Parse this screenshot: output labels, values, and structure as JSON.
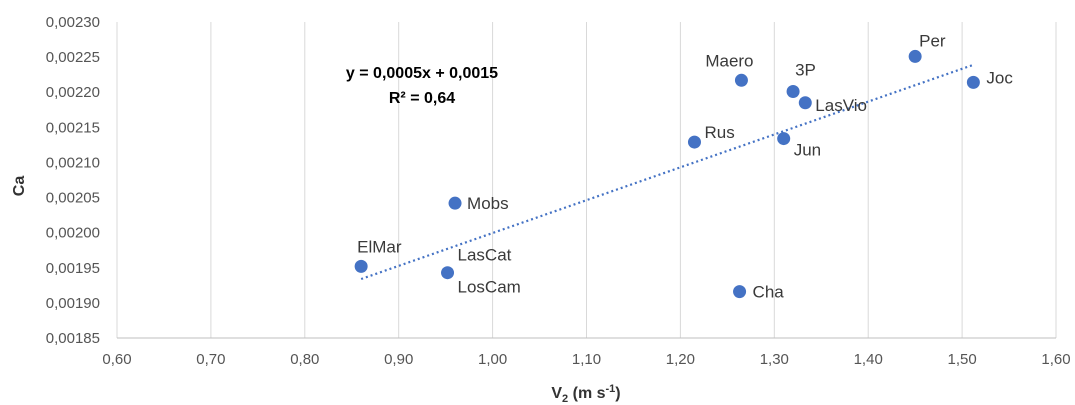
{
  "chart_data": {
    "type": "scatter",
    "xlabel": "V",
    "xlabel_sub": "2",
    "xlabel_unit_pre": " (m s",
    "xlabel_unit_sup": "-1",
    "xlabel_unit_post": ")",
    "ylabel": "Ca",
    "xlim": [
      0.6,
      1.6
    ],
    "ylim": [
      0.00185,
      0.0023
    ],
    "x_ticks": [
      "0,60",
      "0,70",
      "0,80",
      "0,90",
      "1,00",
      "1,10",
      "1,20",
      "1,30",
      "1,40",
      "1,50",
      "1,60"
    ],
    "y_ticks": [
      "0,00185",
      "0,00190",
      "0,00195",
      "0,00200",
      "0,00205",
      "0,00210",
      "0,00215",
      "0,00220",
      "0,00225",
      "0,00230"
    ],
    "grid": "vertical",
    "marker_color": "#4472C4",
    "trend_color": "#4472C4",
    "points": [
      {
        "label": "ElMar",
        "x": 0.86,
        "y": 0.001952
      },
      {
        "label": "LasCat",
        "x": 0.952,
        "y": 0.001943
      },
      {
        "label": "LosCam",
        "x": 0.952,
        "y": 0.001943
      },
      {
        "label": "Mobs",
        "x": 0.96,
        "y": 0.002042
      },
      {
        "label": "Rus",
        "x": 1.215,
        "y": 0.002129
      },
      {
        "label": "Maero",
        "x": 1.265,
        "y": 0.002217
      },
      {
        "label": "Cha",
        "x": 1.263,
        "y": 0.001916
      },
      {
        "label": "Jun",
        "x": 1.31,
        "y": 0.002134
      },
      {
        "label": "3P",
        "x": 1.32,
        "y": 0.002201
      },
      {
        "label": "LasVio",
        "x": 1.333,
        "y": 0.002185
      },
      {
        "label": "Per",
        "x": 1.45,
        "y": 0.002251
      },
      {
        "label": "Joc",
        "x": 1.512,
        "y": 0.002214
      }
    ],
    "trendline": {
      "type": "linear-dotted",
      "x_range": [
        0.86,
        1.512
      ],
      "y_range": [
        0.001934,
        0.002239
      ],
      "equation": "y = 0,0005x + 0,0015",
      "r2": "R² = 0,64"
    }
  }
}
